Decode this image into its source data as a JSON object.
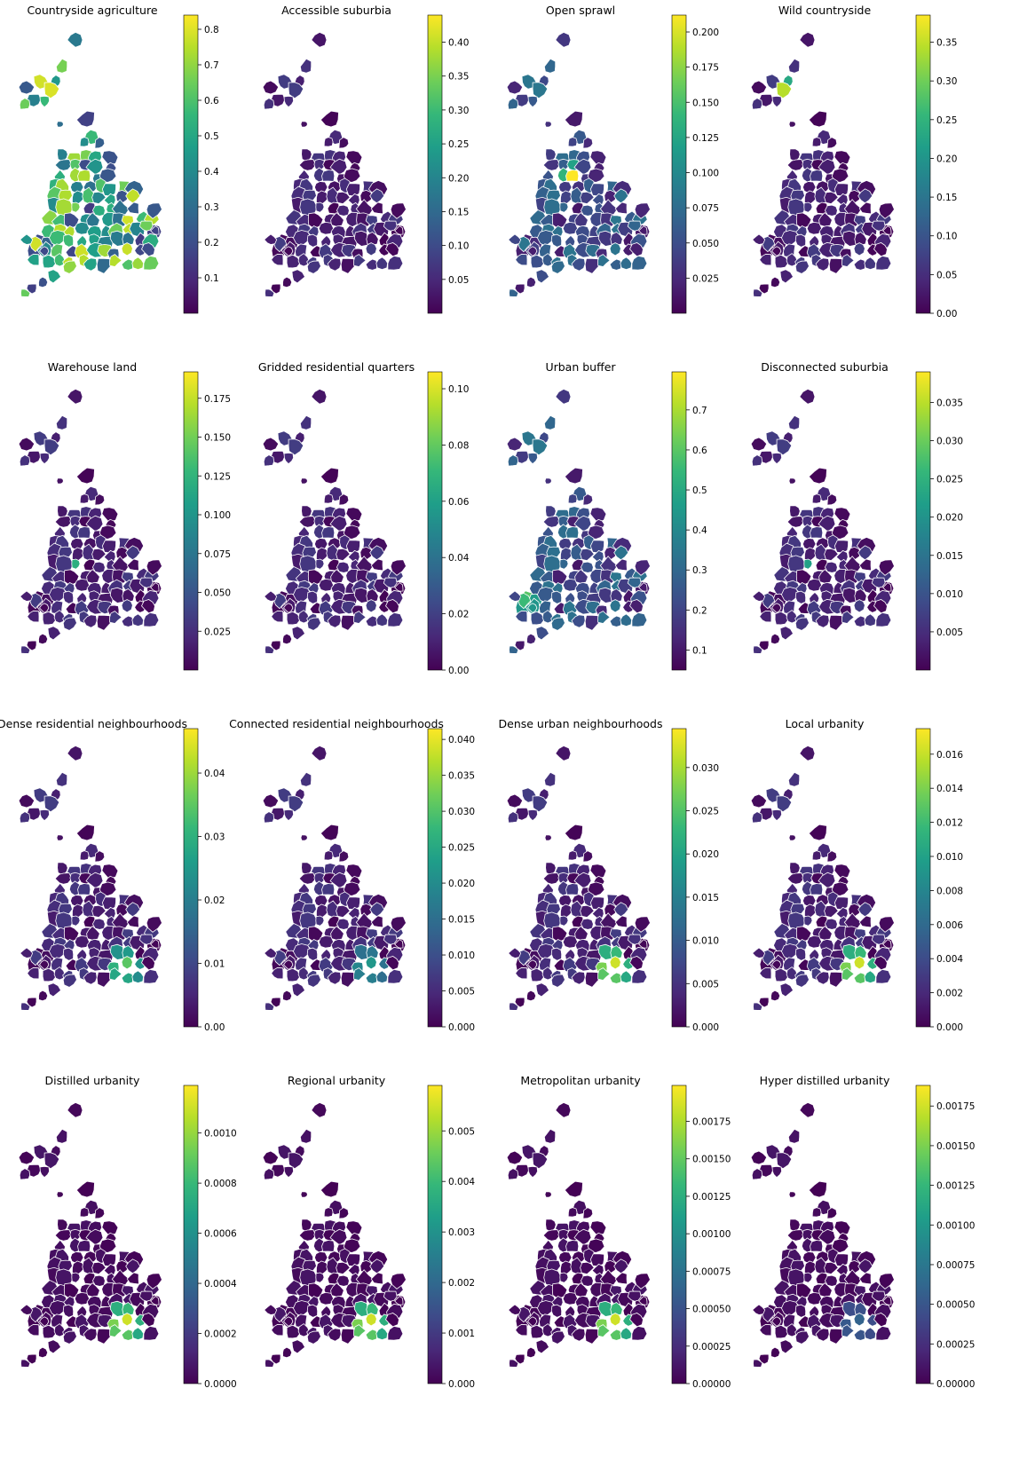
{
  "colors": {
    "viridis_stops": [
      "#440154",
      "#482878",
      "#3e4a89",
      "#31688e",
      "#26828e",
      "#1f9e89",
      "#35b779",
      "#6ece58",
      "#b5de2b",
      "#fde725"
    ],
    "background": "#ffffff",
    "text": "#000000"
  },
  "chart_data": [
    {
      "type": "choropleth",
      "title": "Countryside agriculture",
      "colorbar": {
        "range": [
          0.0,
          0.84
        ],
        "ticks": [
          "0.1",
          "0.2",
          "0.3",
          "0.4",
          "0.5",
          "0.6",
          "0.7",
          "0.8"
        ]
      },
      "palette": "viridis",
      "region_levels": "mixed",
      "hotspot": "none",
      "hotspot_level": 0.95
    },
    {
      "type": "choropleth",
      "title": "Accessible suburbia",
      "colorbar": {
        "range": [
          0.0,
          0.44
        ],
        "ticks": [
          "0.05",
          "0.10",
          "0.15",
          "0.20",
          "0.25",
          "0.30",
          "0.35",
          "0.40"
        ]
      },
      "palette": "viridis",
      "region_levels": "low",
      "hotspot": "none",
      "hotspot_level": 0.0
    },
    {
      "type": "choropleth",
      "title": "Open sprawl",
      "colorbar": {
        "range": [
          0.0,
          0.212
        ],
        "ticks": [
          "0.025",
          "0.050",
          "0.075",
          "0.100",
          "0.125",
          "0.150",
          "0.175",
          "0.200"
        ]
      },
      "palette": "viridis",
      "region_levels": "moderate",
      "hotspot": "north-west",
      "hotspot_level": 0.95
    },
    {
      "type": "choropleth",
      "title": "Wild countryside",
      "colorbar": {
        "range": [
          0.0,
          0.385
        ],
        "ticks": [
          "0.00",
          "0.05",
          "0.10",
          "0.15",
          "0.20",
          "0.25",
          "0.30",
          "0.35"
        ]
      },
      "palette": "viridis",
      "region_levels": "low",
      "hotspot": "lake-district",
      "hotspot_level": 0.95
    },
    {
      "type": "choropleth",
      "title": "Warehouse land",
      "colorbar": {
        "range": [
          0.0,
          0.192
        ],
        "ticks": [
          "0.025",
          "0.050",
          "0.075",
          "0.100",
          "0.125",
          "0.150",
          "0.175"
        ]
      },
      "palette": "viridis",
      "region_levels": "low",
      "hotspot": "midlands",
      "hotspot_level": 0.95
    },
    {
      "type": "choropleth",
      "title": "Gridded residential quarters",
      "colorbar": {
        "range": [
          0.0,
          0.106
        ],
        "ticks": [
          "0.00",
          "0.02",
          "0.04",
          "0.06",
          "0.08",
          "0.10"
        ]
      },
      "palette": "viridis",
      "region_levels": "low",
      "hotspot": "none",
      "hotspot_level": 0.0
    },
    {
      "type": "choropleth",
      "title": "Urban buffer",
      "colorbar": {
        "range": [
          0.05,
          0.795
        ],
        "ticks": [
          "0.1",
          "0.2",
          "0.3",
          "0.4",
          "0.5",
          "0.6",
          "0.7"
        ]
      },
      "palette": "viridis",
      "region_levels": "moderate",
      "hotspot": "wales",
      "hotspot_level": 0.75
    },
    {
      "type": "choropleth",
      "title": "Disconnected suburbia",
      "colorbar": {
        "range": [
          0.0,
          0.039
        ],
        "ticks": [
          "0.005",
          "0.010",
          "0.015",
          "0.020",
          "0.025",
          "0.030",
          "0.035"
        ]
      },
      "palette": "viridis",
      "region_levels": "low",
      "hotspot": "midlands",
      "hotspot_level": 0.85
    },
    {
      "type": "choropleth",
      "title": "Dense residential neighbourhoods",
      "colorbar": {
        "range": [
          0.0,
          0.047
        ],
        "ticks": [
          "0.00",
          "0.01",
          "0.02",
          "0.03",
          "0.04"
        ]
      },
      "palette": "viridis",
      "region_levels": "low",
      "hotspot": "london",
      "hotspot_level": 0.75
    },
    {
      "type": "choropleth",
      "title": "Connected residential neighbourhoods",
      "colorbar": {
        "range": [
          0.0,
          0.0415
        ],
        "ticks": [
          "0.000",
          "0.005",
          "0.010",
          "0.015",
          "0.020",
          "0.025",
          "0.030",
          "0.035",
          "0.040"
        ]
      },
      "palette": "viridis",
      "region_levels": "low",
      "hotspot": "london",
      "hotspot_level": 0.5
    },
    {
      "type": "choropleth",
      "title": "Dense urban neighbourhoods",
      "colorbar": {
        "range": [
          0.0,
          0.0345
        ],
        "ticks": [
          "0.000",
          "0.005",
          "0.010",
          "0.015",
          "0.020",
          "0.025",
          "0.030"
        ]
      },
      "palette": "viridis",
      "region_levels": "low",
      "hotspot": "london",
      "hotspot_level": 0.97
    },
    {
      "type": "choropleth",
      "title": "Local urbanity",
      "colorbar": {
        "range": [
          0.0,
          0.0175
        ],
        "ticks": [
          "0.000",
          "0.002",
          "0.004",
          "0.006",
          "0.008",
          "0.010",
          "0.012",
          "0.014",
          "0.016"
        ]
      },
      "palette": "viridis",
      "region_levels": "low",
      "hotspot": "london",
      "hotspot_level": 0.97
    },
    {
      "type": "choropleth",
      "title": "Distilled urbanity",
      "colorbar": {
        "range": [
          0.0,
          0.00119
        ],
        "ticks": [
          "0.0000",
          "0.0002",
          "0.0004",
          "0.0006",
          "0.0008",
          "0.0010"
        ]
      },
      "palette": "viridis",
      "region_levels": "very-low",
      "hotspot": "london",
      "hotspot_level": 0.97
    },
    {
      "type": "choropleth",
      "title": "Regional urbanity",
      "colorbar": {
        "range": [
          0.0,
          0.0059
        ],
        "ticks": [
          "0.000",
          "0.001",
          "0.002",
          "0.003",
          "0.004",
          "0.005"
        ]
      },
      "palette": "viridis",
      "region_levels": "very-low",
      "hotspot": "london",
      "hotspot_level": 0.97
    },
    {
      "type": "choropleth",
      "title": "Metropolitan urbanity",
      "colorbar": {
        "range": [
          0.0,
          0.00199
        ],
        "ticks": [
          "0.00000",
          "0.00025",
          "0.00050",
          "0.00075",
          "0.00100",
          "0.00125",
          "0.00150",
          "0.00175"
        ]
      },
      "palette": "viridis",
      "region_levels": "very-low",
      "hotspot": "london",
      "hotspot_level": 0.97
    },
    {
      "type": "choropleth",
      "title": "Hyper distilled urbanity",
      "colorbar": {
        "range": [
          0.0,
          0.00188
        ],
        "ticks": [
          "0.00000",
          "0.00025",
          "0.00050",
          "0.00075",
          "0.00100",
          "0.00125",
          "0.00150",
          "0.00175"
        ]
      },
      "palette": "viridis",
      "region_levels": "very-low",
      "hotspot": "london",
      "hotspot_level": 0.25
    }
  ]
}
